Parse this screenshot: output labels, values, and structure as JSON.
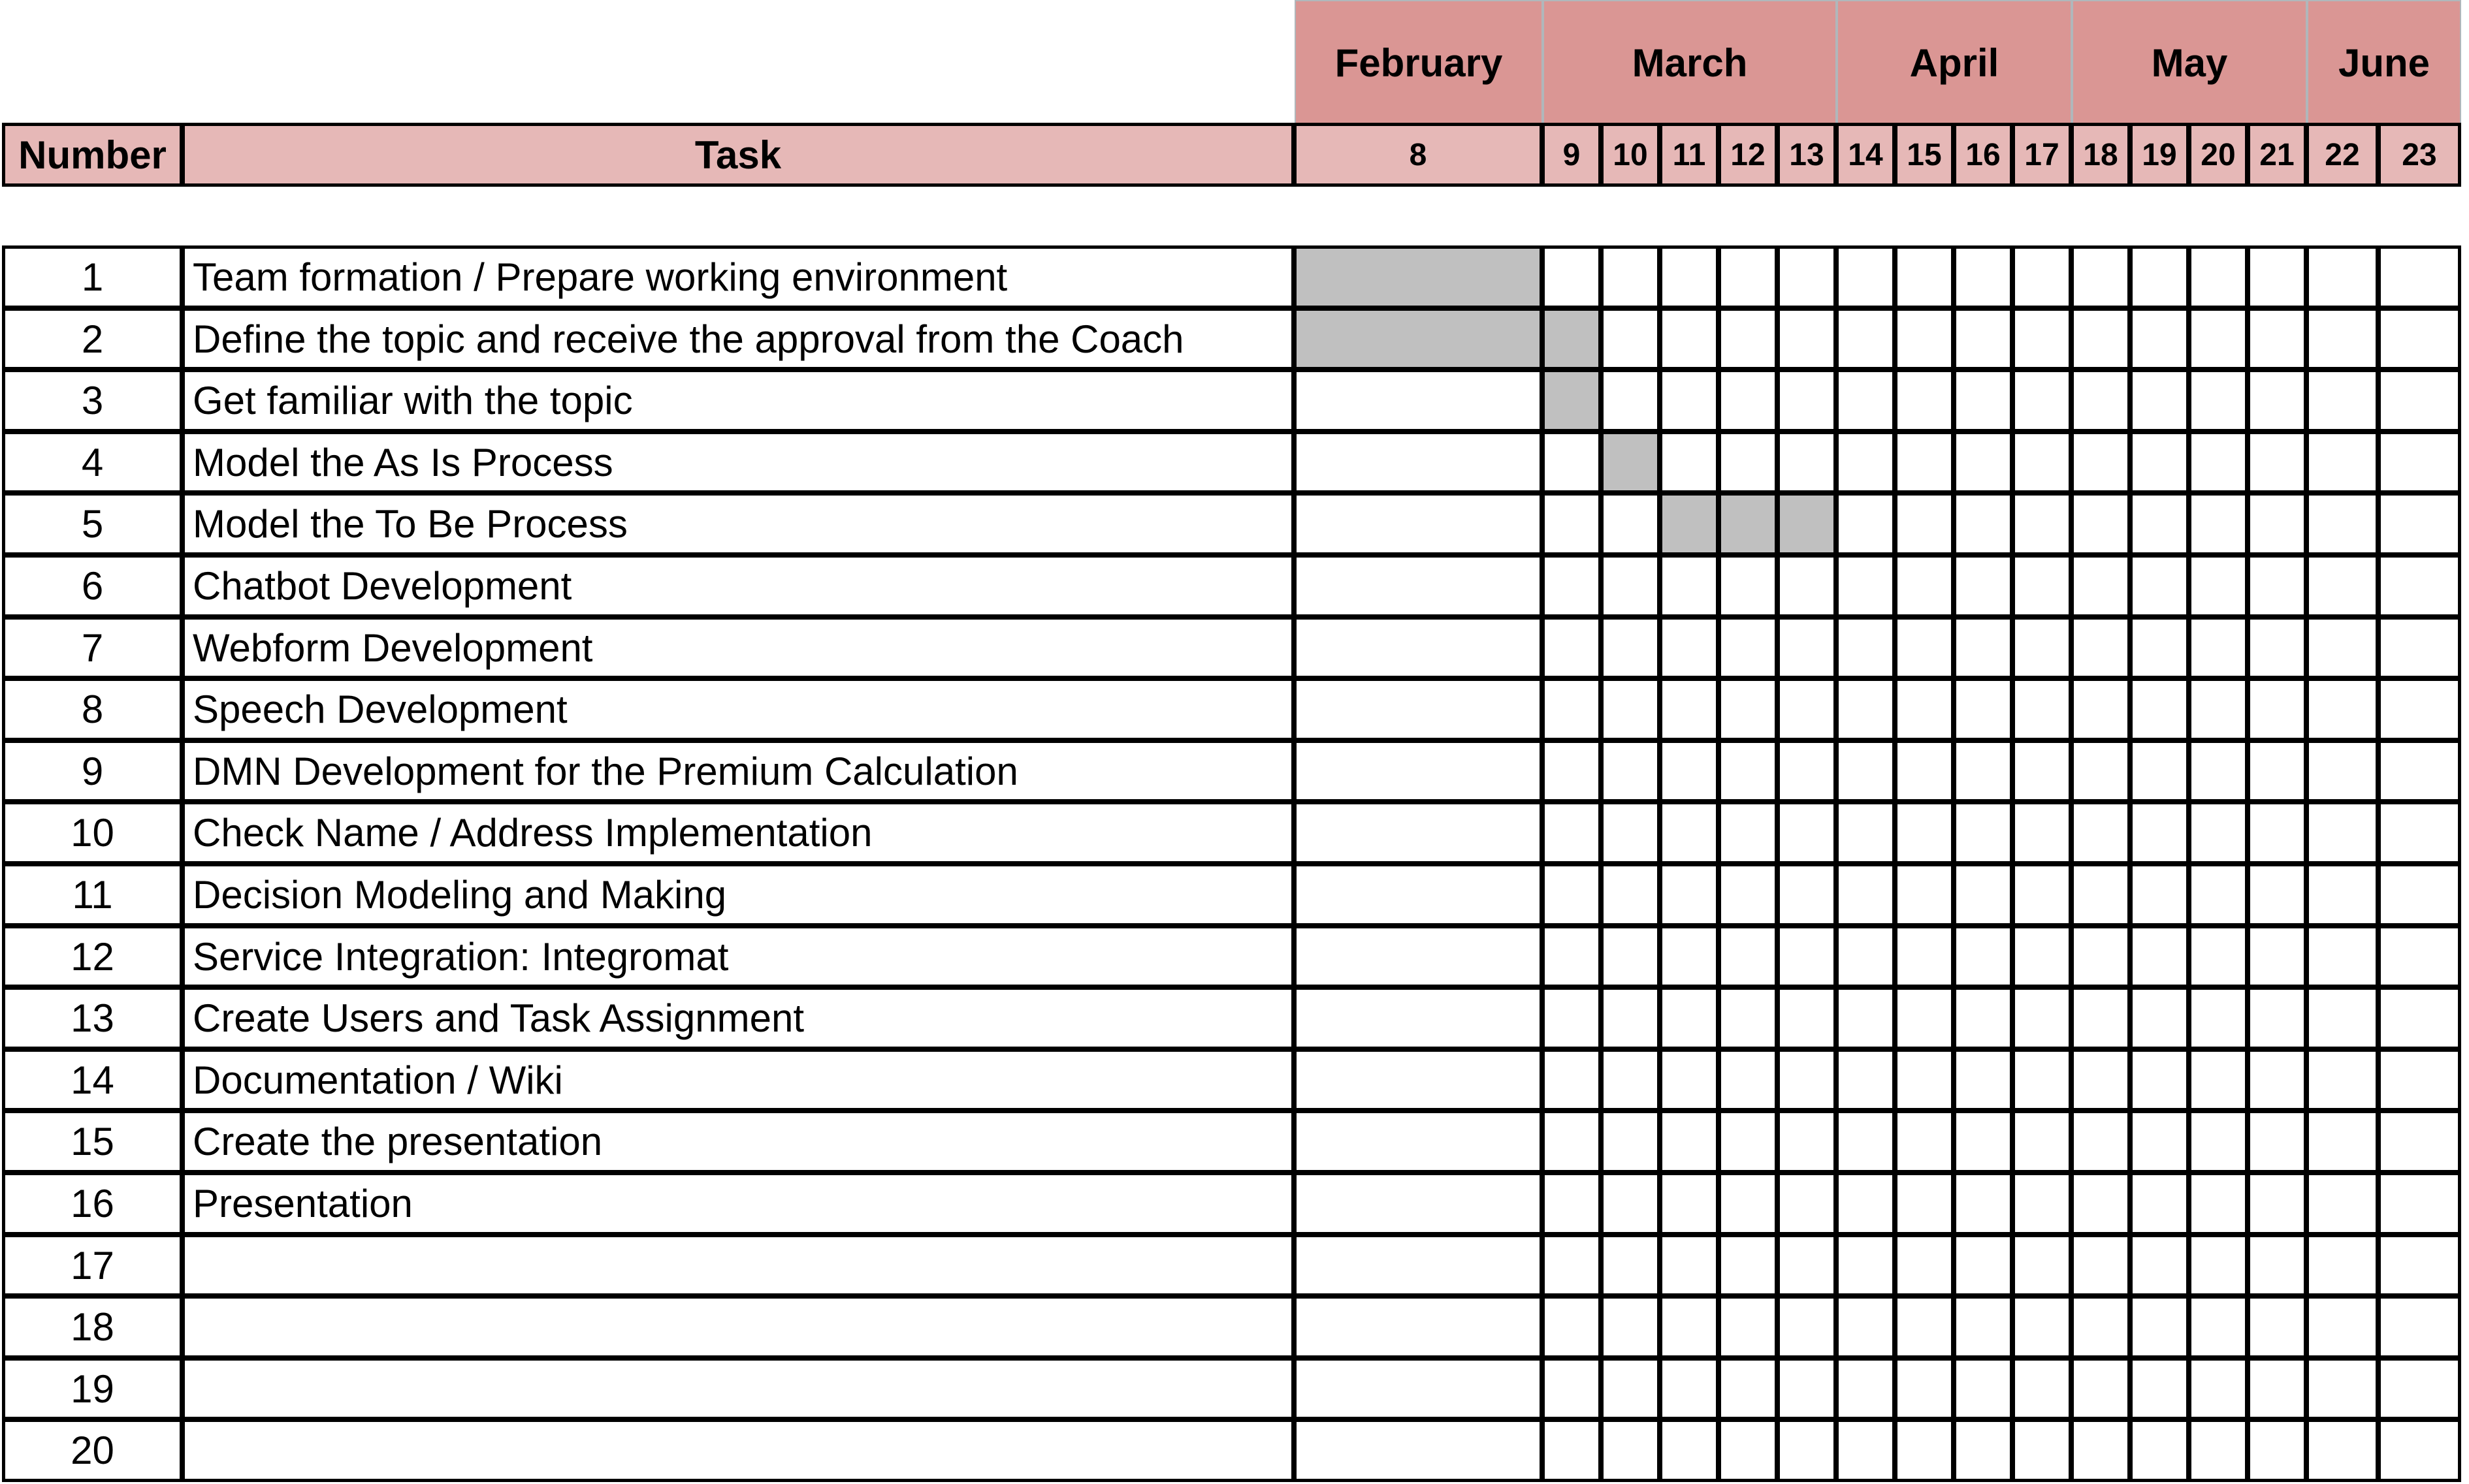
{
  "chart_data": {
    "type": "gantt",
    "months": [
      {
        "name": "February",
        "weeks": [
          "8"
        ]
      },
      {
        "name": "March",
        "weeks": [
          "9",
          "10",
          "11",
          "12",
          "13"
        ]
      },
      {
        "name": "April",
        "weeks": [
          "14",
          "15",
          "16",
          "17"
        ]
      },
      {
        "name": "May",
        "weeks": [
          "18",
          "19",
          "20",
          "21"
        ]
      },
      {
        "name": "June",
        "weeks": [
          "22",
          "23"
        ]
      }
    ],
    "headers": {
      "number": "Number",
      "task": "Task"
    },
    "tasks": [
      {
        "number": "1",
        "name": "Team formation / Prepare working environment",
        "weeks": [
          "8"
        ]
      },
      {
        "number": "2",
        "name": "Define the topic and receive the approval from the Coach",
        "weeks": [
          "8",
          "9"
        ]
      },
      {
        "number": "3",
        "name": "Get familiar with the topic",
        "weeks": [
          "9"
        ]
      },
      {
        "number": "4",
        "name": "Model the As Is Process",
        "weeks": [
          "10"
        ]
      },
      {
        "number": "5",
        "name": "Model the To Be Process",
        "weeks": [
          "11",
          "12",
          "13"
        ]
      },
      {
        "number": "6",
        "name": "Chatbot Development",
        "weeks": []
      },
      {
        "number": "7",
        "name": "Webform Development",
        "weeks": []
      },
      {
        "number": "8",
        "name": "Speech Development",
        "weeks": []
      },
      {
        "number": "9",
        "name": "DMN Development for the Premium Calculation",
        "weeks": []
      },
      {
        "number": "10",
        "name": "Check Name / Address Implementation",
        "weeks": []
      },
      {
        "number": "11",
        "name": "Decision Modeling and Making",
        "weeks": []
      },
      {
        "number": "12",
        "name": "Service Integration: Integromat",
        "weeks": []
      },
      {
        "number": "13",
        "name": "Create Users and Task Assignment",
        "weeks": []
      },
      {
        "number": "14",
        "name": "Documentation / Wiki",
        "weeks": []
      },
      {
        "number": "15",
        "name": "Create the presentation",
        "weeks": []
      },
      {
        "number": "16",
        "name": "Presentation",
        "weeks": []
      },
      {
        "number": "17",
        "name": "",
        "weeks": []
      },
      {
        "number": "18",
        "name": "",
        "weeks": []
      },
      {
        "number": "19",
        "name": "",
        "weeks": []
      },
      {
        "number": "20",
        "name": "",
        "weeks": []
      }
    ]
  },
  "colors": {
    "month_header": "#da9694",
    "column_header": "#e6b8b7",
    "filled_bar": "#c0c0c0"
  }
}
